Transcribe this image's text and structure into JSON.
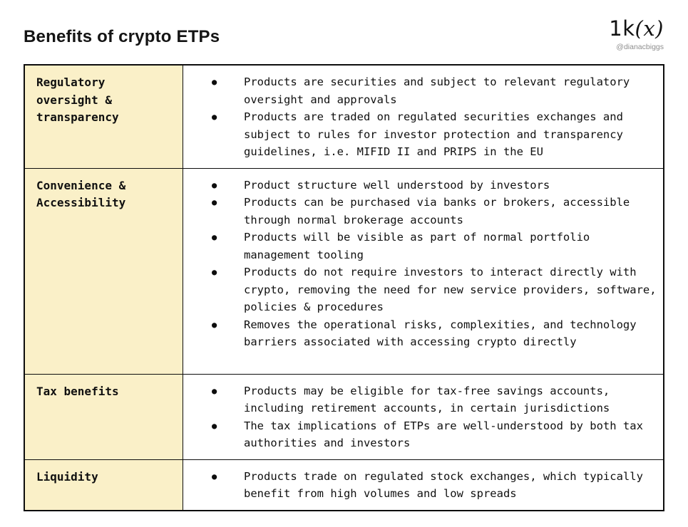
{
  "header": {
    "title": "Benefits of crypto ETPs",
    "logo": {
      "part1": "1k",
      "part2": "(x)"
    },
    "handle": "@dianacbiggs"
  },
  "icons": {
    "bullet": "●"
  },
  "table": {
    "rows": [
      {
        "category": "Regulatory oversight & transparency",
        "bullets": [
          "Products are securities and subject to relevant regulatory oversight and approvals",
          "Products are traded on regulated securities exchanges and subject to rules for investor protection and transparency guidelines, i.e. MIFID II and PRIPS in the EU"
        ]
      },
      {
        "category": "Convenience & Accessibility",
        "bullets": [
          "Product structure well understood by investors",
          "Products can be purchased via banks or brokers, accessible through normal brokerage accounts",
          "Products will be visible as part of normal portfolio management tooling",
          "Products do not require investors to interact directly with crypto, removing the need for new service providers, software, policies & procedures",
          "Removes the operational risks, complexities, and technology barriers associated with accessing crypto directly"
        ]
      },
      {
        "category": "Tax benefits",
        "bullets": [
          "Products may be eligible for tax-free savings accounts, including retirement accounts, in certain jurisdictions",
          "The tax implications of ETPs are well-understood by both tax authorities and investors"
        ]
      },
      {
        "category": "Liquidity",
        "bullets": [
          "Products trade on regulated stock exchanges, which typically benefit from high volumes and low spreads"
        ]
      }
    ]
  },
  "colors": {
    "category_bg": "#FAF0C8",
    "border": "#0d0d0d",
    "text": "#101010",
    "handle_gray": "#8e8e8e"
  }
}
